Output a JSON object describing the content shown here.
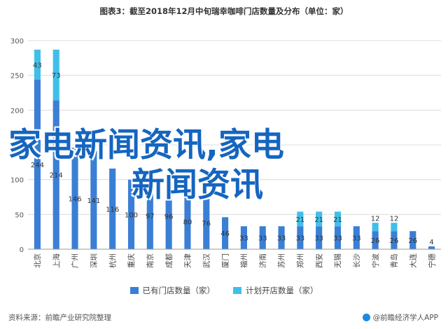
{
  "chart_data": {
    "type": "bar",
    "stacked": true,
    "title": "图表3：截至2018年12月中旬瑞幸咖啡门店数量及分布（单位：家）",
    "ylim": [
      0,
      300
    ],
    "yticks": [
      0,
      50,
      100,
      150,
      200,
      250,
      300
    ],
    "grid": true,
    "legend_position": "bottom",
    "categories": [
      "北京",
      "上海",
      "广州",
      "深圳",
      "杭州",
      "重庆",
      "南京",
      "成都",
      "天津",
      "武汉",
      "厦门",
      "福州",
      "济南",
      "苏州",
      "郑州",
      "西安",
      "无锡",
      "长沙",
      "宁波",
      "青岛",
      "大连",
      "宁德"
    ],
    "series": [
      {
        "name": "已有门店数量（家）",
        "color": "#3a7fd5",
        "values": [
          244,
          214,
          146,
          141,
          116,
          100,
          97,
          96,
          80,
          76,
          46,
          33,
          33,
          33,
          33,
          33,
          33,
          33,
          26,
          26,
          26,
          4
        ],
        "labels": [
          "244",
          "214",
          "146",
          "141",
          "116",
          "100",
          "97",
          "96",
          "80",
          "76",
          "46",
          "33",
          "33",
          "33",
          "33",
          "33",
          "33",
          "33",
          "26",
          "26",
          "26",
          "4"
        ]
      },
      {
        "name": "计划开店数量（家）",
        "color": "#40bfe8",
        "values": [
          43,
          73,
          0,
          0,
          0,
          0,
          0,
          0,
          0,
          0,
          0,
          0,
          0,
          0,
          21,
          21,
          21,
          0,
          12,
          12,
          0,
          0
        ],
        "labels": [
          "43",
          "73",
          "",
          "",
          "",
          "",
          "",
          "",
          "",
          "",
          "",
          "",
          "",
          "",
          "21",
          "21",
          "21",
          "",
          "12",
          "12",
          "",
          ""
        ]
      }
    ]
  },
  "overlay": {
    "line1": "家电新闻资讯,家电",
    "line2": "新闻资讯"
  },
  "footer": {
    "source": "资料来源：前瞻产业研究院整理",
    "brand": "@前瞻经济学人APP"
  }
}
